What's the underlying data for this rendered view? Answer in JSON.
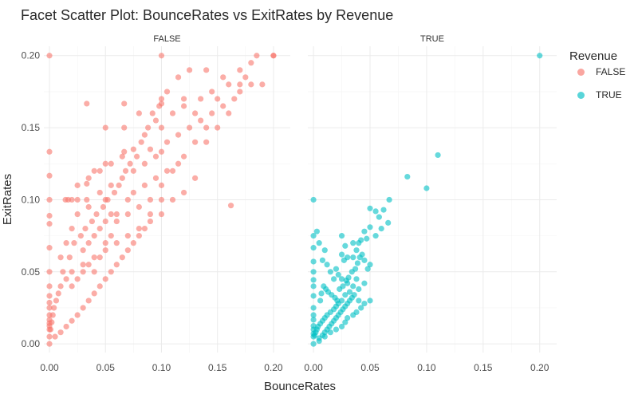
{
  "chart_data": {
    "type": "scatter",
    "title": "Facet Scatter Plot: BounceRates vs ExitRates by Revenue",
    "xlabel": "BounceRates",
    "ylabel": "ExitRates",
    "xlim": [
      -0.005,
      0.215
    ],
    "ylim": [
      -0.006,
      0.2065
    ],
    "x_ticks": [
      0.0,
      0.05,
      0.1,
      0.15,
      0.2
    ],
    "x_tick_labels": [
      "0.00",
      "0.05",
      "0.10",
      "0.15",
      "0.20"
    ],
    "y_ticks": [
      0.0,
      0.05,
      0.1,
      0.15,
      0.2
    ],
    "y_tick_labels": [
      "0.00",
      "0.05",
      "0.10",
      "0.15",
      "0.20"
    ],
    "grid": true,
    "legend_position": "right",
    "legend_title": "Revenue",
    "facets": [
      {
        "label": "FALSE",
        "color": "#F8766D",
        "points": [
          [
            0.0,
            0.2
          ],
          [
            0.2,
            0.2
          ],
          [
            0.1,
            0.2
          ],
          [
            0.0,
            0.1333
          ],
          [
            0.0,
            0.1167
          ],
          [
            0.0,
            0.1
          ],
          [
            0.0,
            0.0889
          ],
          [
            0.0,
            0.0833
          ],
          [
            0.0,
            0.0667
          ],
          [
            0.0,
            0.05
          ],
          [
            0.0,
            0.04
          ],
          [
            0.0,
            0.0333
          ],
          [
            0.0,
            0.0286
          ],
          [
            0.0,
            0.025
          ],
          [
            0.0,
            0.02
          ],
          [
            0.0,
            0.0167
          ],
          [
            0.0,
            0.0143
          ],
          [
            0.0,
            0.0125
          ],
          [
            0.0,
            0.01
          ],
          [
            0.0,
            0.005
          ],
          [
            0.0,
            0.0
          ],
          [
            0.0333,
            0.1667
          ],
          [
            0.0667,
            0.1667
          ],
          [
            0.1,
            0.1667
          ],
          [
            0.2,
            0.2
          ],
          [
            0.1,
            0.15
          ],
          [
            0.1,
            0.1333
          ],
          [
            0.1,
            0.1
          ],
          [
            0.05,
            0.1
          ],
          [
            0.0333,
            0.1
          ],
          [
            0.025,
            0.1
          ],
          [
            0.02,
            0.1
          ],
          [
            0.0167,
            0.1
          ],
          [
            0.0143,
            0.1
          ],
          [
            0.0667,
            0.1333
          ],
          [
            0.05,
            0.125
          ],
          [
            0.0333,
            0.1111
          ],
          [
            0.04,
            0.12
          ],
          [
            0.05,
            0.15
          ],
          [
            0.0667,
            0.15
          ],
          [
            0.08,
            0.16
          ],
          [
            0.1,
            0.17
          ],
          [
            0.12,
            0.17
          ],
          [
            0.13,
            0.16
          ],
          [
            0.14,
            0.15
          ],
          [
            0.15,
            0.17
          ],
          [
            0.16,
            0.18
          ],
          [
            0.17,
            0.19
          ],
          [
            0.18,
            0.195
          ],
          [
            0.185,
            0.2
          ],
          [
            0.19,
            0.18
          ],
          [
            0.175,
            0.185
          ],
          [
            0.165,
            0.17
          ],
          [
            0.155,
            0.165
          ],
          [
            0.145,
            0.16
          ],
          [
            0.135,
            0.155
          ],
          [
            0.125,
            0.15
          ],
          [
            0.115,
            0.145
          ],
          [
            0.105,
            0.14
          ],
          [
            0.095,
            0.13
          ],
          [
            0.085,
            0.125
          ],
          [
            0.075,
            0.12
          ],
          [
            0.065,
            0.115
          ],
          [
            0.055,
            0.11
          ],
          [
            0.045,
            0.105
          ],
          [
            0.035,
            0.095
          ],
          [
            0.13,
            0.14
          ],
          [
            0.12,
            0.13
          ],
          [
            0.11,
            0.12
          ],
          [
            0.1,
            0.11
          ],
          [
            0.09,
            0.1
          ],
          [
            0.08,
            0.095
          ],
          [
            0.07,
            0.09
          ],
          [
            0.06,
            0.085
          ],
          [
            0.15,
            0.15
          ],
          [
            0.14,
            0.14
          ],
          [
            0.16,
            0.16
          ],
          [
            0.17,
            0.175
          ],
          [
            0.18,
            0.18
          ],
          [
            0.11,
            0.16
          ],
          [
            0.12,
            0.165
          ],
          [
            0.095,
            0.155
          ],
          [
            0.085,
            0.145
          ],
          [
            0.09,
            0.135
          ],
          [
            0.075,
            0.135
          ],
          [
            0.065,
            0.13
          ],
          [
            0.055,
            0.125
          ],
          [
            0.045,
            0.12
          ],
          [
            0.035,
            0.115
          ],
          [
            0.025,
            0.11
          ],
          [
            0.162,
            0.096
          ],
          [
            0.1,
            0.09
          ],
          [
            0.11,
            0.1
          ],
          [
            0.12,
            0.105
          ],
          [
            0.13,
            0.115
          ],
          [
            0.09,
            0.085
          ],
          [
            0.08,
            0.08
          ],
          [
            0.07,
            0.075
          ],
          [
            0.06,
            0.07
          ],
          [
            0.05,
            0.065
          ],
          [
            0.04,
            0.06
          ],
          [
            0.03,
            0.055
          ],
          [
            0.02,
            0.05
          ],
          [
            0.015,
            0.045
          ],
          [
            0.01,
            0.04
          ],
          [
            0.008,
            0.035
          ],
          [
            0.006,
            0.03
          ],
          [
            0.004,
            0.025
          ],
          [
            0.003,
            0.02
          ],
          [
            0.002,
            0.015
          ],
          [
            0.001,
            0.01
          ],
          [
            0.005,
            0.005
          ],
          [
            0.01,
            0.008
          ],
          [
            0.015,
            0.012
          ],
          [
            0.02,
            0.016
          ],
          [
            0.025,
            0.02
          ],
          [
            0.03,
            0.025
          ],
          [
            0.035,
            0.03
          ],
          [
            0.04,
            0.035
          ],
          [
            0.045,
            0.04
          ],
          [
            0.05,
            0.045
          ],
          [
            0.055,
            0.05
          ],
          [
            0.06,
            0.055
          ],
          [
            0.065,
            0.06
          ],
          [
            0.07,
            0.065
          ],
          [
            0.075,
            0.07
          ],
          [
            0.08,
            0.075
          ],
          [
            0.085,
            0.08
          ],
          [
            0.09,
            0.09
          ],
          [
            0.01,
            0.06
          ],
          [
            0.015,
            0.07
          ],
          [
            0.02,
            0.08
          ],
          [
            0.025,
            0.09
          ],
          [
            0.012,
            0.05
          ],
          [
            0.018,
            0.06
          ],
          [
            0.022,
            0.07
          ],
          [
            0.028,
            0.075
          ],
          [
            0.032,
            0.08
          ],
          [
            0.038,
            0.085
          ],
          [
            0.042,
            0.09
          ],
          [
            0.048,
            0.095
          ],
          [
            0.052,
            0.1
          ],
          [
            0.058,
            0.105
          ],
          [
            0.062,
            0.11
          ],
          [
            0.068,
            0.12
          ],
          [
            0.072,
            0.125
          ],
          [
            0.078,
            0.13
          ],
          [
            0.082,
            0.14
          ],
          [
            0.088,
            0.15
          ],
          [
            0.092,
            0.16
          ],
          [
            0.098,
            0.165
          ],
          [
            0.105,
            0.175
          ],
          [
            0.115,
            0.185
          ],
          [
            0.125,
            0.19
          ],
          [
            0.14,
            0.19
          ],
          [
            0.155,
            0.185
          ],
          [
            0.17,
            0.18
          ],
          [
            0.145,
            0.175
          ],
          [
            0.135,
            0.17
          ],
          [
            0.06,
            0.09
          ],
          [
            0.07,
            0.1
          ],
          [
            0.075,
            0.105
          ],
          [
            0.085,
            0.11
          ],
          [
            0.095,
            0.115
          ],
          [
            0.105,
            0.12
          ],
          [
            0.115,
            0.125
          ],
          [
            0.04,
            0.075
          ],
          [
            0.045,
            0.08
          ],
          [
            0.05,
            0.085
          ],
          [
            0.055,
            0.09
          ],
          [
            0.03,
            0.065
          ],
          [
            0.035,
            0.07
          ],
          [
            0.02,
            0.04
          ],
          [
            0.025,
            0.045
          ],
          [
            0.03,
            0.05
          ],
          [
            0.035,
            0.055
          ],
          [
            0.04,
            0.05
          ],
          [
            0.045,
            0.06
          ],
          [
            0.05,
            0.07
          ],
          [
            0.055,
            0.075
          ]
        ]
      },
      {
        "label": "TRUE",
        "color": "#00BFC4",
        "points": [
          [
            0.2,
            0.2
          ],
          [
            0.0,
            0.1
          ],
          [
            0.11,
            0.131
          ],
          [
            0.083,
            0.116
          ],
          [
            0.1,
            0.108
          ],
          [
            0.067,
            0.1
          ],
          [
            0.05,
            0.094
          ],
          [
            0.062,
            0.093
          ],
          [
            0.055,
            0.092
          ],
          [
            0.058,
            0.088
          ],
          [
            0.066,
            0.084
          ],
          [
            0.06,
            0.08
          ],
          [
            0.05,
            0.081
          ],
          [
            0.045,
            0.078
          ],
          [
            0.047,
            0.073
          ],
          [
            0.042,
            0.072
          ],
          [
            0.055,
            0.075
          ],
          [
            0.04,
            0.07
          ],
          [
            0.035,
            0.07
          ],
          [
            0.025,
            0.075
          ],
          [
            0.028,
            0.068
          ],
          [
            0.038,
            0.065
          ],
          [
            0.043,
            0.062
          ],
          [
            0.045,
            0.058
          ],
          [
            0.05,
            0.055
          ],
          [
            0.048,
            0.052
          ],
          [
            0.035,
            0.06
          ],
          [
            0.03,
            0.06
          ],
          [
            0.025,
            0.062
          ],
          [
            0.027,
            0.058
          ],
          [
            0.0,
            0.0667
          ],
          [
            0.0,
            0.0571
          ],
          [
            0.0,
            0.05
          ],
          [
            0.0,
            0.0444
          ],
          [
            0.0,
            0.04
          ],
          [
            0.0,
            0.0333
          ],
          [
            0.0,
            0.025
          ],
          [
            0.0,
            0.02
          ],
          [
            0.0,
            0.0167
          ],
          [
            0.0,
            0.0125
          ],
          [
            0.0,
            0.01
          ],
          [
            0.0,
            0.0071
          ],
          [
            0.0,
            0.005
          ],
          [
            0.0,
            0.0
          ],
          [
            0.0,
            0.075
          ],
          [
            0.003,
            0.078
          ],
          [
            0.005,
            0.07
          ],
          [
            0.01,
            0.065
          ],
          [
            0.008,
            0.058
          ],
          [
            0.012,
            0.055
          ],
          [
            0.015,
            0.05
          ],
          [
            0.02,
            0.052
          ],
          [
            0.022,
            0.048
          ],
          [
            0.025,
            0.045
          ],
          [
            0.018,
            0.045
          ],
          [
            0.03,
            0.042
          ],
          [
            0.035,
            0.04
          ],
          [
            0.04,
            0.038
          ],
          [
            0.045,
            0.042
          ],
          [
            0.038,
            0.045
          ],
          [
            0.032,
            0.036
          ],
          [
            0.028,
            0.034
          ],
          [
            0.025,
            0.03
          ],
          [
            0.022,
            0.028
          ],
          [
            0.02,
            0.026
          ],
          [
            0.018,
            0.024
          ],
          [
            0.015,
            0.022
          ],
          [
            0.012,
            0.02
          ],
          [
            0.01,
            0.018
          ],
          [
            0.008,
            0.016
          ],
          [
            0.006,
            0.014
          ],
          [
            0.004,
            0.012
          ],
          [
            0.003,
            0.01
          ],
          [
            0.002,
            0.008
          ],
          [
            0.001,
            0.006
          ],
          [
            0.005,
            0.004
          ],
          [
            0.008,
            0.006
          ],
          [
            0.01,
            0.008
          ],
          [
            0.012,
            0.01
          ],
          [
            0.014,
            0.012
          ],
          [
            0.016,
            0.014
          ],
          [
            0.018,
            0.016
          ],
          [
            0.02,
            0.018
          ],
          [
            0.022,
            0.02
          ],
          [
            0.024,
            0.022
          ],
          [
            0.026,
            0.024
          ],
          [
            0.028,
            0.026
          ],
          [
            0.03,
            0.028
          ],
          [
            0.032,
            0.03
          ],
          [
            0.034,
            0.032
          ],
          [
            0.036,
            0.034
          ],
          [
            0.04,
            0.03
          ],
          [
            0.045,
            0.028
          ],
          [
            0.05,
            0.03
          ],
          [
            0.042,
            0.025
          ],
          [
            0.038,
            0.022
          ],
          [
            0.035,
            0.02
          ],
          [
            0.03,
            0.018
          ],
          [
            0.028,
            0.015
          ],
          [
            0.025,
            0.012
          ],
          [
            0.02,
            0.01
          ],
          [
            0.015,
            0.008
          ],
          [
            0.01,
            0.005
          ],
          [
            0.005,
            0.002
          ],
          [
            0.006,
            0.03
          ],
          [
            0.007,
            0.035
          ],
          [
            0.009,
            0.04
          ],
          [
            0.011,
            0.038
          ],
          [
            0.013,
            0.036
          ],
          [
            0.016,
            0.034
          ],
          [
            0.019,
            0.032
          ],
          [
            0.021,
            0.03
          ],
          [
            0.023,
            0.038
          ],
          [
            0.026,
            0.04
          ],
          [
            0.029,
            0.044
          ],
          [
            0.031,
            0.046
          ],
          [
            0.034,
            0.05
          ],
          [
            0.037,
            0.052
          ],
          [
            0.039,
            0.056
          ],
          [
            0.041,
            0.06
          ]
        ]
      }
    ]
  }
}
